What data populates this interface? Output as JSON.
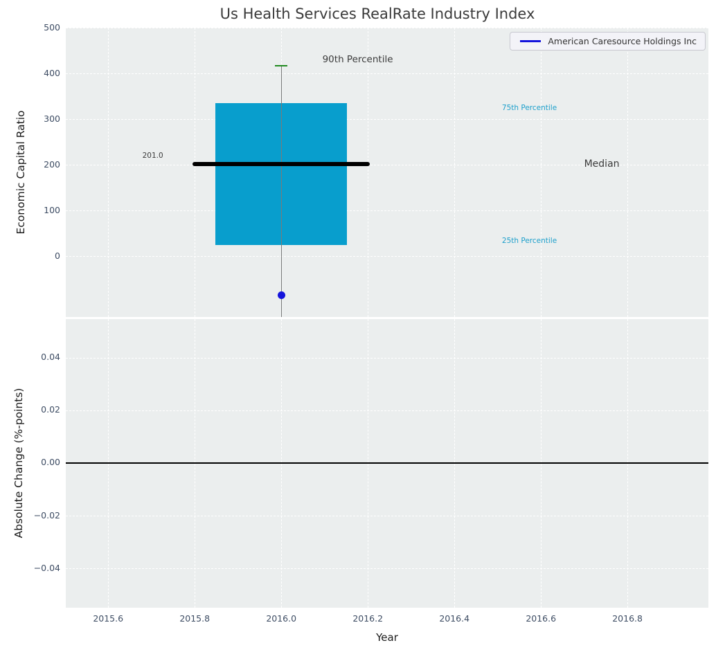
{
  "title": "Us Health Services RealRate Industry Index",
  "legend": {
    "entries": [
      {
        "label": "American Caresource Holdings Inc",
        "color": "#1414dc"
      }
    ]
  },
  "colors": {
    "plot_bg": "#ebeeee",
    "grid": "#ffffff",
    "box_fill": "#089ecd",
    "median_line": "#000000",
    "whisker": "#7a7a7a",
    "p90_cap": "#1f8a1f",
    "company": "#1414dc",
    "cyan_label": "#1c9fcb",
    "tick_label": "#3d4c63",
    "title_color": "#3a3a3a",
    "zero_line": "#000000"
  },
  "chart_data": [
    {
      "type": "box",
      "title": "Us Health Services RealRate Industry Index",
      "ylabel": "Economic Capital Ratio",
      "xlabel": "",
      "xlim": [
        2015.502,
        2016.987
      ],
      "ylim": [
        -133.3,
        500
      ],
      "yticks": [
        0,
        100,
        200,
        300,
        400,
        500
      ],
      "ytick_labels": [
        "0",
        "100",
        "200",
        "300",
        "400",
        "500"
      ],
      "grid": true,
      "legend_position": "upper right",
      "box": {
        "x": 2016.0,
        "q1": 24,
        "median": 201.0,
        "q3": 335,
        "p90": 417,
        "p10": "below visible axis (whisker clipped)",
        "box_half_width": 0.152,
        "median_half_width": 0.205,
        "cap_half_width": 0.0145
      },
      "median_label": "201.0",
      "series": [
        {
          "name": "American Caresource Holdings Inc",
          "type": "scatter",
          "x": [
            2016.0
          ],
          "y": [
            -85
          ]
        }
      ],
      "annotations": [
        {
          "text": "90th Percentile",
          "x": 2016.095,
          "y": 430,
          "color_key": "title_color",
          "size": 13.5
        },
        {
          "text": "75th Percentile",
          "x": 2016.51,
          "y": 324,
          "color_key": "cyan_label",
          "size": 10.5
        },
        {
          "text": "Median",
          "x": 2016.7,
          "y": 201,
          "color_key": "title_color",
          "size": 14
        },
        {
          "text": "25th Percentile",
          "x": 2016.51,
          "y": 33,
          "color_key": "cyan_label",
          "size": 10.5
        },
        {
          "text": "201.0",
          "x": 2015.679,
          "y": 220,
          "color_key": "title_color",
          "size": 10.5
        }
      ]
    },
    {
      "type": "line",
      "ylabel": "Absolute Change (%-points)",
      "xlabel": "Year",
      "xlim": [
        2015.502,
        2016.987
      ],
      "ylim": [
        -0.055,
        0.0547
      ],
      "yticks": [
        0.04,
        0.02,
        0.0,
        -0.02,
        -0.04
      ],
      "ytick_labels": [
        "0.04",
        "0.02",
        "0.00",
        "−0.02",
        "−0.04"
      ],
      "xticks": [
        2015.6,
        2015.8,
        2016.0,
        2016.2,
        2016.4,
        2016.6,
        2016.8
      ],
      "xtick_labels": [
        "2015.6",
        "2015.8",
        "2016.0",
        "2016.2",
        "2016.4",
        "2016.6",
        "2016.8"
      ],
      "axhline": 0.0,
      "grid": true,
      "series": []
    }
  ]
}
